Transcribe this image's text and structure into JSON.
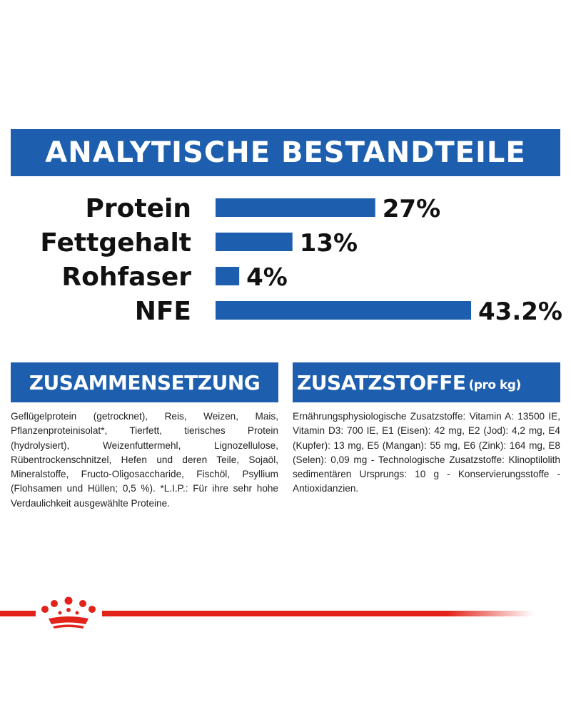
{
  "banner": {
    "title": "ANALYTISCHE BESTANDTEILE"
  },
  "chart_data": {
    "type": "bar",
    "orientation": "horizontal",
    "categories": [
      "Protein",
      "Fettgehalt",
      "Rohfaser",
      "NFE"
    ],
    "values": [
      27,
      13,
      4,
      43.2
    ],
    "value_labels": [
      "27%",
      "13%",
      "4%",
      "43.2%"
    ],
    "unit": "%",
    "bar_color": "#1d5fae",
    "grid": false,
    "legend": "none"
  },
  "composition": {
    "heading": "ZUSAMMENSETZUNG",
    "text": "Geflügelprotein (getrocknet), Reis, Weizen, Mais, Pflanzenproteinisolat*, Tierfett, tierisches Protein (hydrolysiert), Weizenfuttermehl, Lignozellulose, Rübentrockenschnitzel, Hefen und deren Teile, Sojaöl, Mineralstoffe, Fructo-Oligosaccharide, Fischöl, Psyllium (Flohsamen und Hüllen; 0,5 %). *L.I.P.: Für ihre sehr hohe Verdaulichkeit ausgewählte Proteine."
  },
  "additives": {
    "heading": "ZUSATZSTOFFE",
    "heading_sub": "(pro kg)",
    "text": "Ernährungsphysiologische Zusatzstoffe: Vitamin A: 13500 IE, Vitamin D3: 700 IE, E1 (Eisen): 42 mg, E2 (Jod): 4,2 mg, E4 (Kupfer): 13 mg, E5 (Mangan): 55 mg, E6 (Zink): 164 mg, E8 (Selen): 0,09 mg - Technologische Zusatzstoffe: Klinoptilolith sedimentären Ursprungs: 10 g - Konservierungsstoffe - Antioxidanzien."
  },
  "footer": {
    "logo_icon": "crown-icon",
    "accent_color": "#e2231a"
  }
}
